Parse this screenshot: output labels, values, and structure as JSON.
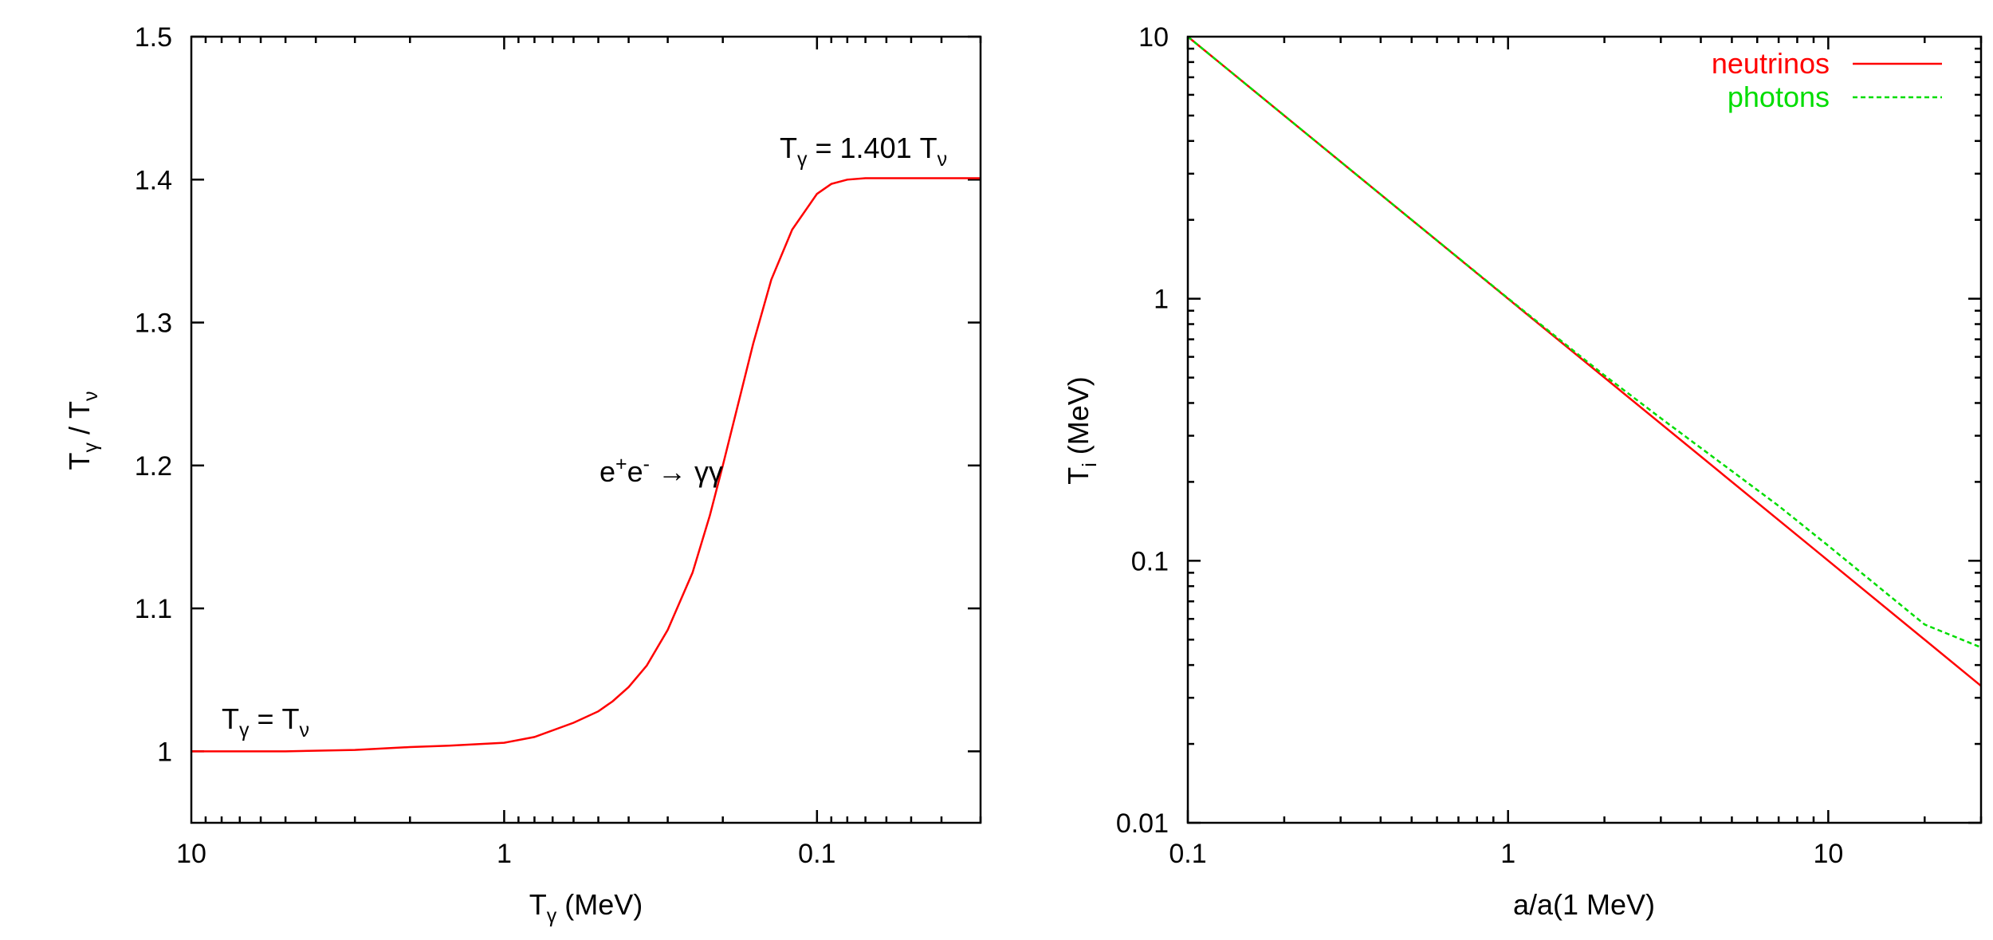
{
  "chart_data": [
    {
      "type": "line",
      "title": "",
      "xscale": "log",
      "x_reversed": true,
      "xlim": [
        10,
        0.03
      ],
      "ylim": [
        0.95,
        1.5
      ],
      "xlabel": {
        "main": "T",
        "sub": "γ",
        "rest": " (MeV)"
      },
      "ylabel": {
        "p1": "T",
        "s1": "γ",
        "p2": " / T",
        "s2": "ν"
      },
      "x_ticks": [
        {
          "value": 10,
          "label": "10"
        },
        {
          "value": 1,
          "label": "1"
        },
        {
          "value": 0.1,
          "label": "0.1"
        }
      ],
      "y_ticks": [
        {
          "value": 1.0,
          "label": "1"
        },
        {
          "value": 1.1,
          "label": "1.1"
        },
        {
          "value": 1.2,
          "label": "1.2"
        },
        {
          "value": 1.3,
          "label": "1.3"
        },
        {
          "value": 1.4,
          "label": "1.4"
        },
        {
          "value": 1.5,
          "label": "1.5"
        }
      ],
      "series": [
        {
          "color": "#ff0000",
          "dashed": false,
          "points": [
            [
              10,
              1.0
            ],
            [
              5,
              1.0
            ],
            [
              3,
              1.001
            ],
            [
              2,
              1.003
            ],
            [
              1.5,
              1.004
            ],
            [
              1.0,
              1.006
            ],
            [
              0.8,
              1.01
            ],
            [
              0.6,
              1.02
            ],
            [
              0.5,
              1.028
            ],
            [
              0.45,
              1.035
            ],
            [
              0.4,
              1.045
            ],
            [
              0.35,
              1.06
            ],
            [
              0.3,
              1.085
            ],
            [
              0.25,
              1.125
            ],
            [
              0.22,
              1.165
            ],
            [
              0.2,
              1.2
            ],
            [
              0.18,
              1.24
            ],
            [
              0.16,
              1.285
            ],
            [
              0.14,
              1.33
            ],
            [
              0.12,
              1.365
            ],
            [
              0.1,
              1.39
            ],
            [
              0.09,
              1.397
            ],
            [
              0.08,
              1.4
            ],
            [
              0.07,
              1.401
            ],
            [
              0.05,
              1.401
            ],
            [
              0.03,
              1.401
            ]
          ]
        }
      ],
      "annotations": {
        "bottom_left": {
          "p1": "T",
          "s1": "γ",
          "p2": " = T",
          "s2": "ν"
        },
        "top_right": {
          "p1": "T",
          "s1": "γ",
          "p2": " = 1.401 T",
          "s2": "ν"
        },
        "reaction": {
          "p1": "e",
          "sup1": "+",
          "p2": "e",
          "sup2": "-",
          "arrow": " → ",
          "p3": "γγ"
        }
      }
    },
    {
      "type": "line",
      "title": "",
      "xscale": "log",
      "yscale": "log",
      "xlim": [
        0.1,
        30
      ],
      "ylim": [
        0.01,
        10
      ],
      "xlabel": "a/a(1 MeV)",
      "ylabel": {
        "main": "T",
        "sub": "i",
        "rest": " (MeV)"
      },
      "x_ticks": [
        {
          "value": 0.1,
          "label": "0.1"
        },
        {
          "value": 1,
          "label": "1"
        },
        {
          "value": 10,
          "label": "10"
        }
      ],
      "y_ticks": [
        {
          "value": 0.01,
          "label": "0.01"
        },
        {
          "value": 0.1,
          "label": "0.1"
        },
        {
          "value": 1,
          "label": "1"
        },
        {
          "value": 10,
          "label": "10"
        }
      ],
      "legend_position": "top-right",
      "series": [
        {
          "name": "neutrinos",
          "color": "#ff0000",
          "dashed": false,
          "points": [
            [
              0.1,
              10
            ],
            [
              1,
              1
            ],
            [
              10,
              0.1
            ],
            [
              30,
              0.0333
            ]
          ]
        },
        {
          "name": "photons",
          "color": "#00dd00",
          "dashed": true,
          "points": [
            [
              0.1,
              10
            ],
            [
              0.5,
              2.0
            ],
            [
              1,
              1.003
            ],
            [
              1.5,
              0.675
            ],
            [
              2,
              0.51
            ],
            [
              3,
              0.35
            ],
            [
              5,
              0.22
            ],
            [
              7,
              0.162
            ],
            [
              10,
              0.1141
            ],
            [
              15,
              0.0761
            ],
            [
              20,
              0.0571
            ],
            [
              30,
              0.0467
            ]
          ]
        }
      ]
    }
  ]
}
